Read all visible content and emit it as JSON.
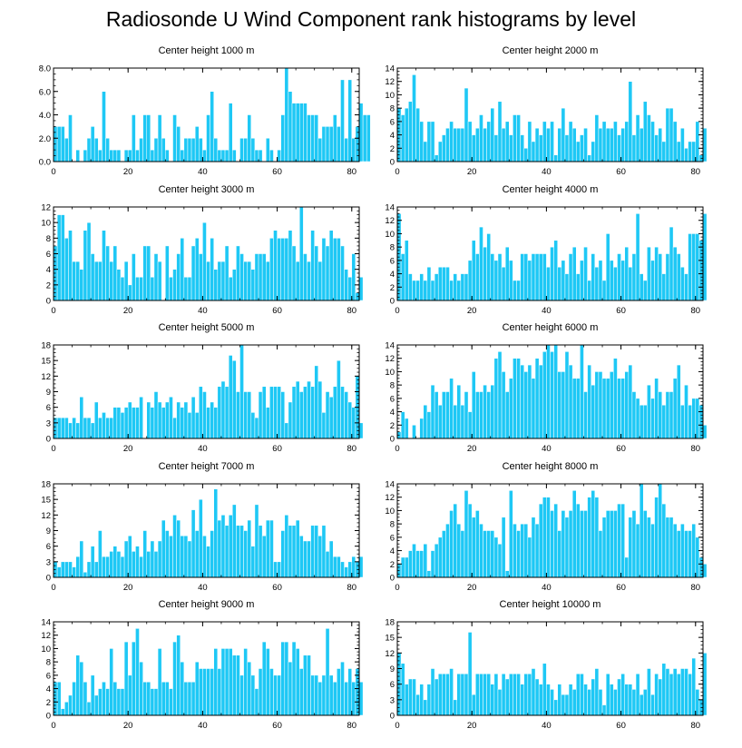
{
  "title": "Radiosonde U Wind Component rank histograms by level",
  "colors": {
    "bar": "#1ec8f5",
    "bar_edge": "#ffffff",
    "axis": "#000000"
  },
  "chart_data": [
    {
      "type": "bar",
      "title": "Center height 1000 m",
      "xlim": [
        0,
        82
      ],
      "ylim": [
        0,
        8
      ],
      "yticks": [
        0,
        2,
        4,
        6,
        8
      ],
      "ytick_labels": [
        "0.0",
        "2.0",
        "4.0",
        "6.0",
        "8.0"
      ],
      "xticks": [
        0,
        20,
        40,
        60,
        80
      ],
      "values": [
        3,
        3,
        3,
        2,
        4,
        0,
        1,
        0,
        1,
        2,
        3,
        2,
        1,
        6,
        2,
        1,
        1,
        1,
        0,
        1,
        1,
        4,
        1,
        2,
        4,
        4,
        1,
        2,
        4,
        2,
        1,
        0,
        4,
        3,
        1,
        2,
        2,
        2,
        3,
        2,
        1,
        4,
        6,
        2,
        1,
        1,
        1,
        5,
        1,
        0,
        2,
        2,
        4,
        2,
        1,
        1,
        0,
        2,
        1,
        0,
        1,
        4,
        8,
        6,
        5,
        5,
        5,
        5,
        4,
        4,
        4,
        2,
        3,
        3,
        3,
        4,
        3,
        7,
        2,
        7,
        2,
        3,
        5,
        4,
        4
      ],
      "xlabel": "",
      "ylabel": ""
    },
    {
      "type": "bar",
      "title": "Center height 2000 m",
      "xlim": [
        0,
        82
      ],
      "ylim": [
        0,
        14
      ],
      "yticks": [
        0,
        2,
        4,
        6,
        8,
        10,
        12,
        14
      ],
      "ytick_labels": [
        "0",
        "2",
        "4",
        "6",
        "8",
        "10",
        "12",
        "14"
      ],
      "xticks": [
        0,
        20,
        40,
        60,
        80
      ],
      "values": [
        8,
        7,
        8,
        9,
        13,
        8,
        6,
        3,
        6,
        6,
        1,
        3,
        4,
        5,
        6,
        5,
        5,
        5,
        11,
        6,
        4,
        5,
        7,
        5,
        6,
        8,
        4,
        9,
        5,
        6,
        4,
        7,
        7,
        4,
        2,
        6,
        3,
        5,
        4,
        6,
        5,
        6,
        1,
        5,
        8,
        4,
        6,
        5,
        3,
        4,
        5,
        1,
        3,
        7,
        5,
        6,
        5,
        5,
        6,
        4,
        5,
        6,
        12,
        4,
        7,
        5,
        9,
        7,
        6,
        4,
        5,
        3,
        8,
        8,
        6,
        3,
        5,
        2,
        3,
        3,
        6,
        1,
        5
      ],
      "xlabel": "",
      "ylabel": ""
    },
    {
      "type": "bar",
      "title": "Center height 3000 m",
      "xlim": [
        0,
        82
      ],
      "ylim": [
        0,
        12
      ],
      "yticks": [
        0,
        2,
        4,
        6,
        8,
        10,
        12
      ],
      "ytick_labels": [
        "0",
        "2",
        "4",
        "6",
        "8",
        "10",
        "12"
      ],
      "xticks": [
        0,
        20,
        40,
        60,
        80
      ],
      "values": [
        7,
        11,
        11,
        8,
        9,
        5,
        5,
        4,
        9,
        10,
        6,
        5,
        5,
        9,
        7,
        5,
        7,
        4,
        3,
        5,
        2,
        6,
        3,
        3,
        7,
        7,
        3,
        6,
        5,
        0,
        7,
        3,
        4,
        6,
        8,
        3,
        3,
        7,
        8,
        6,
        10,
        5,
        8,
        4,
        5,
        5,
        7,
        3,
        4,
        7,
        6,
        5,
        5,
        4,
        6,
        6,
        6,
        5,
        8,
        9,
        8,
        8,
        8,
        9,
        7,
        5,
        12,
        6,
        5,
        9,
        7,
        5,
        8,
        7,
        9,
        8,
        8,
        7,
        4,
        3,
        6,
        1,
        3
      ],
      "xlabel": "",
      "ylabel": ""
    },
    {
      "type": "bar",
      "title": "Center height 4000 m",
      "xlim": [
        0,
        82
      ],
      "ylim": [
        0,
        14
      ],
      "yticks": [
        0,
        2,
        4,
        6,
        8,
        10,
        12,
        14
      ],
      "ytick_labels": [
        "0",
        "2",
        "4",
        "6",
        "8",
        "10",
        "12",
        "14"
      ],
      "xticks": [
        0,
        20,
        40,
        60,
        80
      ],
      "values": [
        13,
        7,
        9,
        4,
        3,
        3,
        4,
        3,
        5,
        3,
        4,
        5,
        5,
        5,
        3,
        4,
        3,
        4,
        4,
        6,
        9,
        7,
        11,
        8,
        10,
        7,
        6,
        7,
        5,
        8,
        6,
        3,
        3,
        7,
        7,
        6,
        7,
        7,
        7,
        7,
        5,
        8,
        9,
        5,
        6,
        4,
        7,
        8,
        4,
        6,
        8,
        3,
        7,
        5,
        6,
        3,
        10,
        6,
        5,
        7,
        6,
        8,
        5,
        7,
        13,
        4,
        3,
        8,
        6,
        8,
        7,
        4,
        7,
        11,
        8,
        7,
        5,
        4,
        10,
        10,
        10,
        9,
        13
      ],
      "xlabel": "",
      "ylabel": ""
    },
    {
      "type": "bar",
      "title": "Center height 5000 m",
      "xlim": [
        0,
        82
      ],
      "ylim": [
        0,
        18
      ],
      "yticks": [
        0,
        3,
        6,
        9,
        12,
        15,
        18
      ],
      "ytick_labels": [
        "0",
        "3",
        "6",
        "9",
        "12",
        "15",
        "18"
      ],
      "xticks": [
        0,
        20,
        40,
        60,
        80
      ],
      "values": [
        4,
        4,
        4,
        4,
        3,
        4,
        3,
        8,
        4,
        4,
        3,
        7,
        4,
        5,
        4,
        4,
        6,
        6,
        5,
        6,
        7,
        6,
        6,
        8,
        0,
        7,
        6,
        9,
        7,
        6,
        7,
        8,
        4,
        7,
        6,
        7,
        5,
        8,
        5,
        10,
        9,
        6,
        7,
        6,
        10,
        11,
        10,
        16,
        15,
        9,
        18,
        9,
        9,
        5,
        4,
        9,
        10,
        6,
        10,
        10,
        10,
        9,
        3,
        7,
        10,
        11,
        9,
        10,
        11,
        10,
        14,
        11,
        5,
        9,
        8,
        10,
        15,
        10,
        9,
        7,
        6,
        12,
        3
      ],
      "xlabel": "",
      "ylabel": ""
    },
    {
      "type": "bar",
      "title": "Center height 6000 m",
      "xlim": [
        0,
        82
      ],
      "ylim": [
        0,
        14
      ],
      "yticks": [
        0,
        2,
        4,
        6,
        8,
        10,
        12,
        14
      ],
      "ytick_labels": [
        "0",
        "2",
        "4",
        "6",
        "8",
        "10",
        "12",
        "14"
      ],
      "xticks": [
        0,
        20,
        40,
        60,
        80
      ],
      "values": [
        1,
        4,
        3,
        0,
        2,
        0,
        3,
        5,
        4,
        8,
        7,
        5,
        7,
        7,
        9,
        5,
        8,
        5,
        7,
        4,
        10,
        7,
        7,
        8,
        7,
        8,
        12,
        13,
        10,
        7,
        9,
        12,
        12,
        11,
        10,
        11,
        9,
        12,
        11,
        13,
        14,
        13,
        14,
        10,
        10,
        13,
        11,
        9,
        9,
        14,
        7,
        11,
        8,
        10,
        10,
        9,
        9,
        10,
        12,
        9,
        9,
        10,
        11,
        7,
        6,
        5,
        5,
        8,
        6,
        9,
        7,
        5,
        7,
        7,
        9,
        11,
        5,
        8,
        5,
        6,
        6,
        5,
        2
      ],
      "xlabel": "",
      "ylabel": ""
    },
    {
      "type": "bar",
      "title": "Center height 7000 m",
      "xlim": [
        0,
        82
      ],
      "ylim": [
        0,
        18
      ],
      "yticks": [
        0,
        3,
        6,
        9,
        12,
        15,
        18
      ],
      "ytick_labels": [
        "0",
        "3",
        "6",
        "9",
        "12",
        "15",
        "18"
      ],
      "xticks": [
        0,
        20,
        40,
        60,
        80
      ],
      "values": [
        3,
        2,
        3,
        3,
        3,
        2,
        4,
        7,
        1,
        3,
        6,
        3,
        9,
        4,
        4,
        5,
        6,
        5,
        4,
        7,
        8,
        5,
        6,
        4,
        9,
        5,
        7,
        5,
        7,
        11,
        9,
        8,
        12,
        11,
        8,
        8,
        7,
        13,
        9,
        15,
        8,
        6,
        9,
        17,
        11,
        12,
        10,
        12,
        14,
        10,
        10,
        9,
        11,
        6,
        14,
        10,
        8,
        11,
        11,
        3,
        3,
        9,
        12,
        10,
        10,
        11,
        8,
        7,
        7,
        10,
        10,
        8,
        10,
        5,
        7,
        4,
        4,
        3,
        2,
        3,
        4,
        3,
        4
      ],
      "xlabel": "",
      "ylabel": ""
    },
    {
      "type": "bar",
      "title": "Center height 8000 m",
      "xlim": [
        0,
        82
      ],
      "ylim": [
        0,
        14
      ],
      "yticks": [
        0,
        2,
        4,
        6,
        8,
        10,
        12,
        14
      ],
      "ytick_labels": [
        "0",
        "2",
        "4",
        "6",
        "8",
        "10",
        "12",
        "14"
      ],
      "xticks": [
        0,
        20,
        40,
        60,
        80
      ],
      "values": [
        2,
        3,
        3,
        4,
        5,
        4,
        4,
        5,
        1,
        4,
        5,
        6,
        7,
        8,
        10,
        11,
        8,
        7,
        13,
        11,
        9,
        10,
        8,
        7,
        7,
        7,
        6,
        5,
        9,
        1,
        13,
        8,
        7,
        8,
        8,
        6,
        9,
        8,
        11,
        12,
        12,
        10,
        11,
        7,
        10,
        9,
        10,
        13,
        11,
        10,
        10,
        12,
        13,
        12,
        7,
        9,
        10,
        10,
        10,
        11,
        11,
        3,
        9,
        10,
        8,
        14,
        10,
        9,
        8,
        12,
        14,
        11,
        9,
        9,
        8,
        7,
        8,
        7,
        7,
        8,
        6,
        3,
        2
      ],
      "xlabel": "",
      "ylabel": ""
    },
    {
      "type": "bar",
      "title": "Center height 9000 m",
      "xlim": [
        0,
        82
      ],
      "ylim": [
        0,
        14
      ],
      "yticks": [
        0,
        2,
        4,
        6,
        8,
        10,
        12,
        14
      ],
      "ytick_labels": [
        "0",
        "2",
        "4",
        "6",
        "8",
        "10",
        "12",
        "14"
      ],
      "xticks": [
        0,
        20,
        40,
        60,
        80
      ],
      "values": [
        5,
        5,
        1,
        2,
        3,
        5,
        9,
        8,
        5,
        2,
        6,
        3,
        4,
        5,
        4,
        10,
        5,
        4,
        4,
        11,
        6,
        11,
        13,
        8,
        5,
        5,
        4,
        4,
        10,
        5,
        5,
        4,
        11,
        12,
        8,
        5,
        5,
        5,
        8,
        7,
        7,
        7,
        7,
        10,
        7,
        10,
        10,
        10,
        9,
        9,
        6,
        10,
        8,
        6,
        4,
        7,
        11,
        10,
        7,
        6,
        6,
        11,
        11,
        8,
        11,
        10,
        7,
        9,
        9,
        6,
        6,
        5,
        6,
        13,
        6,
        5,
        7,
        8,
        5,
        7,
        5,
        7,
        5
      ],
      "xlabel": "",
      "ylabel": ""
    },
    {
      "type": "bar",
      "title": "Center height 10000 m",
      "xlim": [
        0,
        82
      ],
      "ylim": [
        0,
        18
      ],
      "yticks": [
        0,
        3,
        6,
        9,
        12,
        15,
        18
      ],
      "ytick_labels": [
        "0",
        "3",
        "6",
        "9",
        "12",
        "15",
        "18"
      ],
      "xticks": [
        0,
        20,
        40,
        60,
        80
      ],
      "values": [
        12,
        10,
        6,
        7,
        7,
        4,
        6,
        3,
        6,
        9,
        7,
        8,
        8,
        8,
        9,
        3,
        8,
        8,
        8,
        16,
        4,
        8,
        8,
        8,
        8,
        6,
        8,
        5,
        8,
        7,
        8,
        8,
        8,
        6,
        8,
        8,
        9,
        7,
        6,
        10,
        6,
        5,
        3,
        6,
        4,
        4,
        6,
        5,
        8,
        8,
        6,
        5,
        7,
        9,
        5,
        2,
        8,
        6,
        5,
        7,
        8,
        6,
        6,
        5,
        8,
        4,
        5,
        9,
        4,
        8,
        7,
        10,
        9,
        8,
        9,
        8,
        9,
        9,
        8,
        11,
        5,
        3,
        12
      ],
      "xlabel": "",
      "ylabel": ""
    }
  ]
}
